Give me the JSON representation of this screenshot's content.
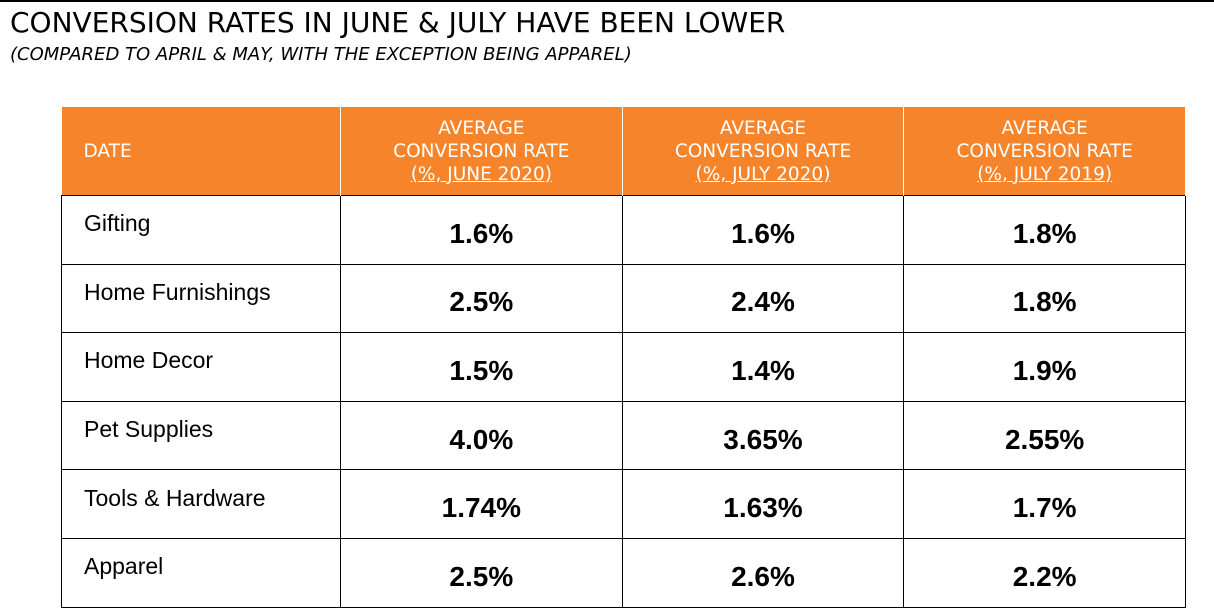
{
  "title": "CONVERSION RATES IN JUNE & JULY HAVE BEEN LOWER",
  "subtitle": "(COMPARED TO APRIL & MAY, WITH THE EXCEPTION BEING APPAREL)",
  "colors": {
    "header_bg": "#f5842b",
    "header_text": "#ffffff"
  },
  "table": {
    "headers": [
      {
        "lines": [
          "DATE"
        ]
      },
      {
        "lines": [
          "AVERAGE",
          "CONVERSION RATE",
          "(%, JUNE 2020)"
        ]
      },
      {
        "lines": [
          "AVERAGE",
          "CONVERSION RATE",
          "(%, JULY 2020)"
        ]
      },
      {
        "lines": [
          "AVERAGE",
          "CONVERSION RATE",
          "(%, JULY 2019)"
        ]
      }
    ],
    "rows": [
      {
        "category": "Gifting",
        "values": [
          "1.6%",
          "1.6%",
          "1.8%"
        ]
      },
      {
        "category": "Home Furnishings",
        "values": [
          "2.5%",
          "2.4%",
          "1.8%"
        ]
      },
      {
        "category": "Home Decor",
        "values": [
          "1.5%",
          "1.4%",
          "1.9%"
        ]
      },
      {
        "category": "Pet Supplies",
        "values": [
          "4.0%",
          "3.65%",
          "2.55%"
        ]
      },
      {
        "category": "Tools & Hardware",
        "values": [
          "1.74%",
          "1.63%",
          "1.7%"
        ]
      },
      {
        "category": "Apparel",
        "values": [
          "2.5%",
          "2.6%",
          "2.2%"
        ]
      }
    ]
  }
}
